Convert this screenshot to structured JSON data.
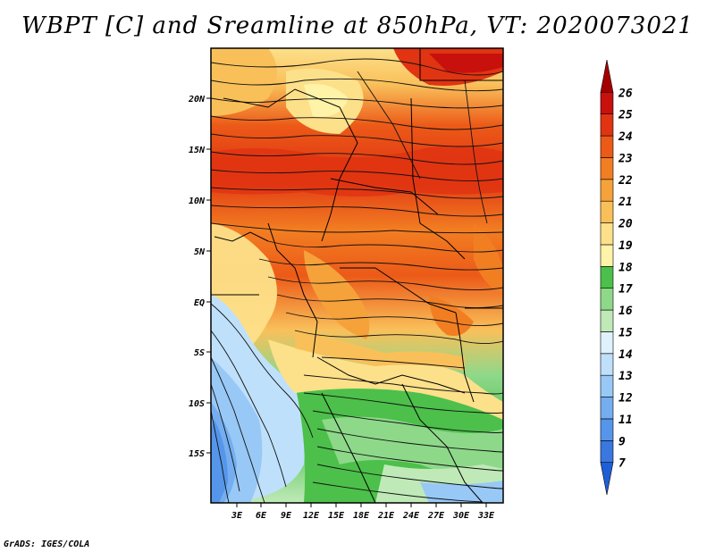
{
  "title": "WBPT [C] and Sreamline at 850hPa, VT: 2020073021",
  "credit": "GrADS: IGES/COLA",
  "map": {
    "lat_labels": [
      "20N",
      "15N",
      "10N",
      "5N",
      "EQ",
      "5S",
      "10S",
      "15S"
    ],
    "lon_labels": [
      "3E",
      "6E",
      "9E",
      "12E",
      "15E",
      "18E",
      "21E",
      "24E",
      "27E",
      "30E",
      "33E"
    ]
  },
  "colorbar": {
    "labels": [
      "7",
      "9",
      "11",
      "12",
      "13",
      "14",
      "15",
      "16",
      "17",
      "18",
      "19",
      "20",
      "21",
      "22",
      "23",
      "24",
      "25",
      "26"
    ],
    "colors": [
      "#1f5fd6",
      "#3a78e0",
      "#5596ea",
      "#74aef0",
      "#98c8f6",
      "#bfe0fb",
      "#dff2fc",
      "#bfeab8",
      "#8ed88a",
      "#4cc04a",
      "#fff3a8",
      "#fde08a",
      "#f9c05a",
      "#f5a23a",
      "#f27e22",
      "#ec5a18",
      "#e03412",
      "#c8100c",
      "#a40000"
    ]
  }
}
